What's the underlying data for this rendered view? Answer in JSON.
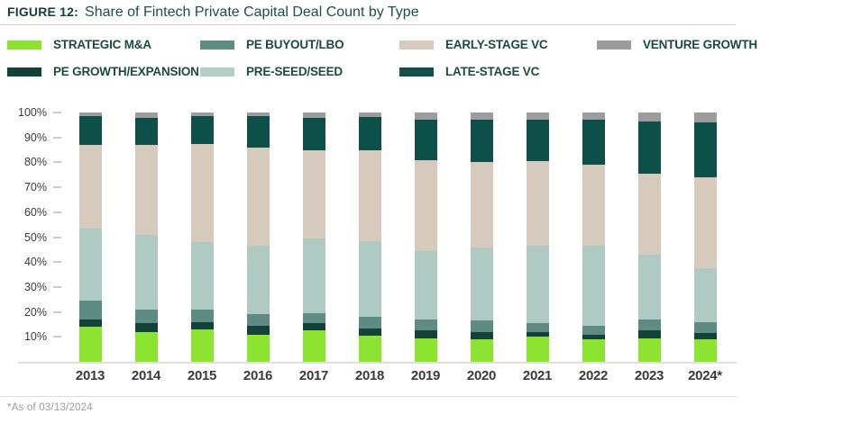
{
  "header": {
    "figure_label": "FIGURE 12:",
    "title": "Share of Fintech Private Capital Deal Count by Type"
  },
  "legend": [
    {
      "label": "STRATEGIC M&A",
      "color": "#8ce431"
    },
    {
      "label": "PE BUYOUT/LBO",
      "color": "#5f8c82"
    },
    {
      "label": "EARLY-STAGE VC",
      "color": "#d5cabb"
    },
    {
      "label": "VENTURE GROWTH",
      "color": "#9c9c9c"
    },
    {
      "label": "PE GROWTH/EXPANSION",
      "color": "#14413a"
    },
    {
      "label": "PRE-SEED/SEED",
      "color": "#b3cfc8"
    },
    {
      "label": "LATE-STAGE VC",
      "color": "#0d4f49"
    }
  ],
  "chart_data": {
    "type": "bar",
    "stacked": true,
    "units": "percent share of deal count",
    "categories": [
      "2013",
      "2014",
      "2015",
      "2016",
      "2017",
      "2018",
      "2019",
      "2020",
      "2021",
      "2022",
      "2023",
      "2024*"
    ],
    "series": [
      {
        "key": "strategic-ma",
        "name": "Strategic M&A",
        "color": "#8ce431",
        "values": [
          14,
          12,
          13,
          11,
          12.5,
          10.5,
          9.5,
          9,
          10,
          9,
          9.5,
          9
        ]
      },
      {
        "key": "pe-growth",
        "name": "PE Growth/Expansion",
        "color": "#14413a",
        "values": [
          3,
          3.5,
          3,
          3.5,
          3,
          3,
          3,
          3,
          2,
          2,
          3,
          2.5
        ]
      },
      {
        "key": "pe-buyout",
        "name": "PE Buyout/LBO",
        "color": "#5f8c82",
        "values": [
          7.5,
          5.5,
          5,
          4.5,
          4,
          4.5,
          4.5,
          4.5,
          3.5,
          3.5,
          4.5,
          4.5
        ]
      },
      {
        "key": "pre-seed",
        "name": "Pre-Seed/Seed",
        "color": "#aecac3",
        "values": [
          29,
          30,
          27,
          27.5,
          30,
          30.5,
          27.5,
          29.5,
          31,
          32,
          26,
          21.5
        ]
      },
      {
        "key": "early-vc",
        "name": "Early-Stage VC",
        "color": "#d5cabb",
        "values": [
          33.5,
          36,
          39.5,
          39.5,
          35.5,
          36.5,
          36.5,
          34,
          34,
          32.5,
          32.5,
          36.5
        ]
      },
      {
        "key": "late-vc",
        "name": "Late-Stage VC",
        "color": "#0d4f49",
        "values": [
          11.5,
          11,
          11,
          12.5,
          13,
          13.2,
          16,
          17,
          16.5,
          18,
          21,
          22
        ]
      },
      {
        "key": "venture-growth",
        "name": "Venture Growth",
        "color": "#9c9c9c",
        "values": [
          1.5,
          2,
          1.5,
          1.5,
          2,
          1.8,
          3,
          3,
          3,
          3,
          3.5,
          4
        ]
      }
    ],
    "y_ticks": [
      "100%",
      "90%",
      "80%",
      "70%",
      "60%",
      "50%",
      "40%",
      "30%",
      "20%",
      "10%"
    ],
    "ylim": [
      0,
      100
    ],
    "grid": false,
    "legend_position": "top"
  },
  "footnote": "*As of 03/13/2024"
}
